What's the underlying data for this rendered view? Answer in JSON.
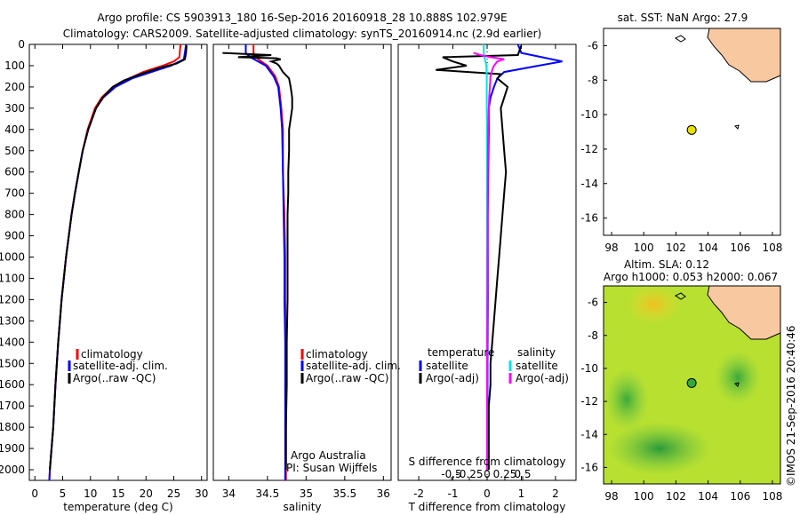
{
  "header": {
    "line1": "Argo profile: CS 5903913_180 16-Sep-2016 20160918_28 10.888S 102.979E",
    "line2": "Climatology: CARS2009. Satellite-adjusted climatology: synTS_20160914.nc (2.9d earlier)"
  },
  "colors": {
    "climatology": "#ff0000",
    "satellite": "#0000ff",
    "argo": "#000000",
    "sal_sat": "#00e5e5",
    "sal_argo": "#ff00ff",
    "land": "#f8c8a0",
    "argo_marker": "#e8e000",
    "argo_marker_alt": "#33aa33"
  },
  "chart_data": [
    {
      "type": "line",
      "name": "temperature-profile",
      "xlabel": "temperature (deg C)",
      "xlim": [
        -1,
        31
      ],
      "ylim": [
        2050,
        0
      ],
      "xticks": [
        "0",
        "5",
        "10",
        "15",
        "20",
        "25",
        "30"
      ],
      "yticks": [
        "0",
        "100",
        "200",
        "300",
        "400",
        "500",
        "600",
        "700",
        "800",
        "900",
        "1000",
        "1100",
        "1200",
        "1300",
        "1400",
        "1500",
        "1600",
        "1700",
        "1800",
        "1900",
        "2000"
      ],
      "legend": [
        "climatology",
        "satellite-adj. clim.",
        "Argo(..raw -QC)"
      ],
      "series": [
        {
          "name": "climatology",
          "color": "#ff0000",
          "depth": [
            0,
            60,
            80,
            100,
            130,
            160,
            200,
            250,
            300,
            400,
            500,
            600,
            700,
            800,
            900,
            1000,
            1200,
            1400,
            1600,
            1800,
            2000,
            2050
          ],
          "values": [
            26.2,
            26.0,
            25.0,
            23.0,
            19.5,
            17.0,
            14.0,
            12.0,
            10.8,
            9.5,
            8.6,
            7.9,
            7.2,
            6.6,
            6.1,
            5.6,
            4.8,
            4.2,
            3.7,
            3.3,
            2.7,
            2.6
          ]
        },
        {
          "name": "satellite-adj. clim.",
          "color": "#0000ff",
          "depth": [
            0,
            40,
            70,
            100,
            130,
            160,
            200,
            250,
            300,
            400,
            500,
            600,
            700,
            800,
            900,
            1000,
            1200,
            1400,
            1600,
            1800,
            2000,
            2050
          ],
          "values": [
            27.2,
            27.0,
            26.8,
            24.5,
            21.0,
            17.5,
            14.5,
            12.3,
            11.0,
            9.6,
            8.6,
            7.9,
            7.2,
            6.6,
            6.1,
            5.6,
            4.8,
            4.2,
            3.7,
            3.3,
            2.7,
            2.6
          ]
        },
        {
          "name": "Argo(..raw -QC)",
          "color": "#000000",
          "depth": [
            5,
            40,
            70,
            90,
            110,
            140,
            170,
            200,
            250,
            300,
            400,
            500,
            600,
            700,
            800,
            900,
            1000,
            1200,
            1400,
            1600,
            1800,
            2000
          ],
          "values": [
            27.3,
            27.2,
            27.0,
            25.5,
            22.5,
            19.0,
            16.0,
            14.0,
            12.2,
            11.0,
            9.6,
            8.6,
            7.9,
            7.2,
            6.6,
            6.1,
            5.6,
            4.8,
            4.2,
            3.7,
            3.3,
            2.7
          ]
        }
      ]
    },
    {
      "type": "line",
      "name": "salinity-profile",
      "xlabel": "salinity",
      "xlim": [
        33.8,
        36.1
      ],
      "ylim": [
        2050,
        0
      ],
      "xticks": [
        "34",
        "34.5",
        "35",
        "35.5",
        "36"
      ],
      "legend": [
        "climatology",
        "satellite-adj. clim.",
        "Argo(..raw -QC)"
      ],
      "annotation": [
        "Argo Australia",
        "PI: Susan Wijffels"
      ],
      "series": [
        {
          "name": "climatology",
          "color": "#ff0000",
          "depth": [
            0,
            40,
            60,
            80,
            100,
            150,
            200,
            300,
            400,
            600,
            800,
            1000,
            1200,
            1400,
            1600,
            1800,
            2000,
            2050
          ],
          "values": [
            34.32,
            34.32,
            34.35,
            34.42,
            34.5,
            34.6,
            34.65,
            34.68,
            34.7,
            34.7,
            34.72,
            34.73,
            34.73,
            34.74,
            34.74,
            34.74,
            34.74,
            34.74
          ]
        },
        {
          "name": "satellite-adj. clim.",
          "color": "#0000ff",
          "depth": [
            0,
            40,
            60,
            80,
            100,
            150,
            200,
            300,
            400,
            600,
            800,
            1000,
            1200,
            1400,
            1600,
            1800,
            2000,
            2050
          ],
          "values": [
            34.22,
            34.22,
            34.28,
            34.38,
            34.48,
            34.58,
            34.64,
            34.67,
            34.69,
            34.7,
            34.71,
            34.72,
            34.72,
            34.73,
            34.73,
            34.73,
            34.73,
            34.73
          ]
        },
        {
          "name": "Argo(..raw -QC)",
          "color": "#000000",
          "depth": [
            40,
            45,
            50,
            60,
            65,
            70,
            80,
            90,
            100,
            130,
            160,
            200,
            250,
            300,
            350,
            400,
            500,
            600,
            700,
            800,
            900,
            1000,
            1200,
            1400,
            1600,
            1800,
            2000
          ],
          "values": [
            33.92,
            34.2,
            34.55,
            34.12,
            34.62,
            34.67,
            34.55,
            34.62,
            34.65,
            34.7,
            34.78,
            34.8,
            34.82,
            34.82,
            34.8,
            34.78,
            34.78,
            34.77,
            34.77,
            34.76,
            34.76,
            34.76,
            34.76,
            34.75,
            34.75,
            34.74,
            34.74
          ]
        }
      ]
    },
    {
      "type": "line",
      "name": "difference-profile",
      "xlabel": "T difference from climatology",
      "xlabel2": "S difference from climatology",
      "xlim": [
        -2.6,
        2.6
      ],
      "ylim": [
        2050,
        0
      ],
      "xticks": [
        "-2",
        "-1",
        "0",
        "1",
        "2"
      ],
      "xticks2": [
        "-0.5",
        "-0.25",
        "0",
        "0.25",
        "0.5"
      ],
      "legend_headers": [
        "temperature",
        "salinity"
      ],
      "legend": [
        "satellite",
        "Argo(-adj)",
        "satellite",
        "Argo(-adj)"
      ],
      "series": [
        {
          "name": "T satellite",
          "color": "#0000ff",
          "depth": [
            0,
            40,
            60,
            80,
            100,
            130,
            160,
            200,
            250,
            300,
            400,
            600,
            800,
            1000,
            1200,
            1500,
            1800,
            2000
          ],
          "values": [
            0.9,
            1.0,
            1.6,
            2.2,
            1.5,
            0.5,
            0.3,
            0.2,
            0.1,
            0.05,
            0.05,
            0.03,
            0.02,
            0.02,
            0.02,
            0.01,
            0.01,
            0.0
          ]
        },
        {
          "name": "T Argo(-adj)",
          "color": "#000000",
          "depth": [
            5,
            50,
            60,
            80,
            100,
            120,
            140,
            160,
            200,
            250,
            300,
            400,
            500,
            600,
            700,
            800,
            900,
            1000,
            1100,
            1200,
            1300,
            1400,
            1500,
            1600,
            1700,
            1800,
            1900,
            2000
          ],
          "values": [
            1.0,
            0.9,
            -1.3,
            -1.0,
            -0.6,
            -1.5,
            0.4,
            0.3,
            0.6,
            0.5,
            0.4,
            0.45,
            0.5,
            0.55,
            0.5,
            0.45,
            0.4,
            0.35,
            0.3,
            0.25,
            0.2,
            0.15,
            0.1,
            0.1,
            0.05,
            0.05,
            0.05,
            0.05
          ]
        },
        {
          "name": "S satellite",
          "color": "#00e5e5",
          "depth": [
            0,
            40,
            60,
            80,
            100,
            150,
            200,
            300,
            400,
            600,
            800,
            1000,
            1500,
            2000
          ],
          "values": [
            -0.1,
            -0.1,
            -0.08,
            -0.05,
            -0.02,
            -0.01,
            -0.01,
            -0.01,
            0.0,
            0.0,
            0.0,
            0.0,
            0.0,
            0.0
          ]
        },
        {
          "name": "S Argo(-adj)",
          "color": "#ff00ff",
          "depth": [
            40,
            50,
            60,
            70,
            80,
            100,
            120,
            150,
            200,
            250,
            300,
            350,
            400,
            600,
            1000,
            1500,
            2000
          ],
          "values": [
            -0.4,
            -0.2,
            0.1,
            0.5,
            0.3,
            0.2,
            0.15,
            0.1,
            0.08,
            0.06,
            0.05,
            0.04,
            0.03,
            0.02,
            0.01,
            0.0,
            0.0
          ]
        }
      ]
    },
    {
      "type": "scatter",
      "name": "sst-map",
      "title": "sat. SST: NaN Argo: 27.9",
      "xlim": [
        97.5,
        108.5
      ],
      "ylim": [
        -17,
        -5
      ],
      "xticks": [
        "98",
        "100",
        "102",
        "104",
        "106",
        "108"
      ],
      "yticks": [
        "-6",
        "-8",
        "-10",
        "-12",
        "-14",
        "-16"
      ],
      "points": [
        {
          "x": 102.979,
          "y": -10.888
        }
      ]
    },
    {
      "type": "heatmap",
      "name": "sla-map",
      "title_line1": "Altim. SLA: 0.12",
      "title_line2": "Argo h1000: 0.053 h2000: 0.067",
      "xlim": [
        97.5,
        108.5
      ],
      "ylim": [
        -17,
        -5
      ],
      "xticks": [
        "98",
        "100",
        "102",
        "104",
        "106",
        "108"
      ],
      "yticks": [
        "-6",
        "-8",
        "-10",
        "-12",
        "-14",
        "-16"
      ],
      "points": [
        {
          "x": 102.979,
          "y": -10.888
        }
      ]
    }
  ],
  "credit": "©IMOS 21-Sep-2016 20:40:46"
}
